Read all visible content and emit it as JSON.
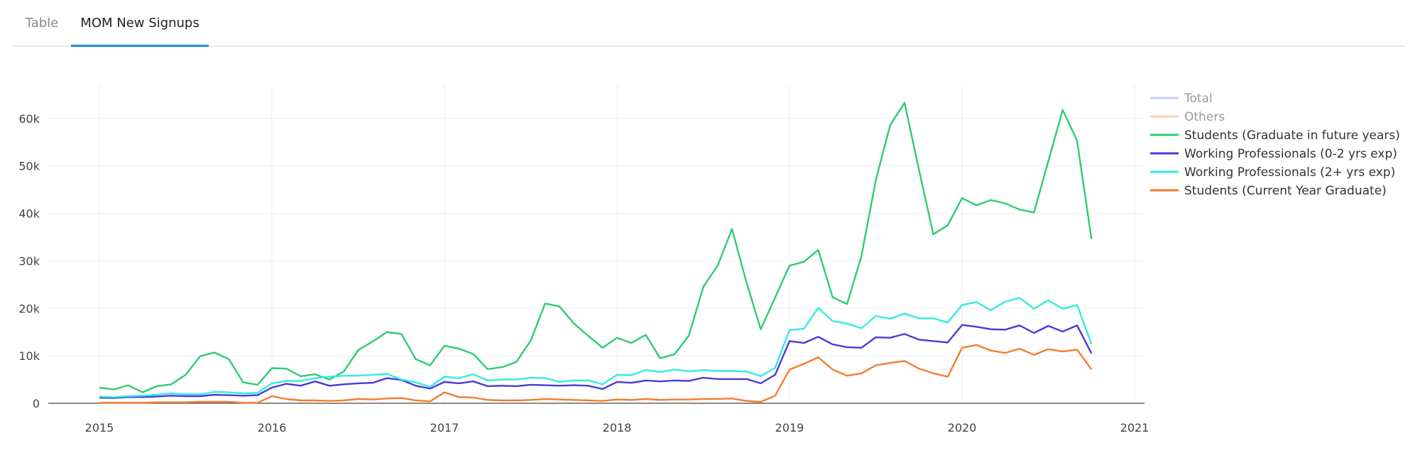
{
  "tabs": [
    {
      "label": "Table",
      "active": false
    },
    {
      "label": "MOM New Signups",
      "active": true
    }
  ],
  "chart_data": {
    "type": "line",
    "x_start": "2015-01",
    "x_end": "2020-10",
    "x_ticks": [
      "2015",
      "2016",
      "2017",
      "2018",
      "2019",
      "2020",
      "2021"
    ],
    "y_ticks": [
      "0",
      "10k",
      "20k",
      "30k",
      "40k",
      "50k",
      "60k"
    ],
    "ylim": [
      0,
      67000
    ],
    "grid": true,
    "legend_position": "right",
    "series": [
      {
        "name": "Total",
        "color": "#9aa6f5",
        "visible": false,
        "values": []
      },
      {
        "name": "Others",
        "color": "#f7ae7a",
        "visible": false,
        "values": []
      },
      {
        "name": "Students (Graduate in future years)",
        "color": "#2ecc71",
        "visible": true,
        "values": [
          3300,
          2900,
          3800,
          2300,
          3600,
          4000,
          6000,
          9900,
          10700,
          9300,
          4400,
          3900,
          7400,
          7300,
          5700,
          6100,
          5000,
          6700,
          11200,
          13000,
          15000,
          14600,
          9300,
          8000,
          12100,
          11500,
          10400,
          7200,
          7600,
          8700,
          13200,
          21000,
          20400,
          16800,
          14200,
          11700,
          13800,
          12700,
          14400,
          9500,
          10300,
          14300,
          24500,
          29000,
          36700,
          25500,
          15600,
          22300,
          29000,
          29800,
          32300,
          22300,
          20900,
          31000,
          47000,
          58600,
          63300,
          49200,
          35600,
          37500,
          43200,
          41700,
          42800,
          42100,
          40800,
          40200,
          51000,
          61800,
          55300,
          34600
        ]
      },
      {
        "name": "Working Professionals (0-2 yrs exp)",
        "color": "#4b3ad6",
        "visible": true,
        "values": [
          1200,
          1100,
          1300,
          1300,
          1400,
          1600,
          1500,
          1500,
          1800,
          1700,
          1600,
          1700,
          3300,
          4100,
          3700,
          4600,
          3700,
          4000,
          4200,
          4300,
          5300,
          4900,
          3700,
          3100,
          4500,
          4200,
          4600,
          3600,
          3700,
          3600,
          3900,
          3800,
          3700,
          3800,
          3700,
          3000,
          4500,
          4300,
          4800,
          4600,
          4800,
          4700,
          5400,
          5100,
          5100,
          5100,
          4200,
          6000,
          13100,
          12700,
          14000,
          12400,
          11800,
          11700,
          13900,
          13800,
          14600,
          13400,
          13100,
          12800,
          16500,
          16100,
          15600,
          15500,
          16400,
          14800,
          16300,
          15100,
          16400,
          10500
        ]
      },
      {
        "name": "Working Professionals (2+ yrs exp)",
        "color": "#33ece0",
        "visible": true,
        "values": [
          1400,
          1300,
          1500,
          1600,
          1800,
          2100,
          1900,
          1900,
          2400,
          2300,
          2100,
          2200,
          4200,
          4700,
          4700,
          5300,
          5600,
          5800,
          5800,
          6000,
          6200,
          5000,
          4400,
          3500,
          5600,
          5300,
          6100,
          4800,
          5000,
          5000,
          5400,
          5300,
          4500,
          4800,
          4800,
          4000,
          6000,
          5900,
          7000,
          6600,
          7100,
          6700,
          7000,
          6800,
          6800,
          6700,
          5700,
          7500,
          15400,
          15700,
          20100,
          17300,
          16800,
          15800,
          18400,
          17800,
          18900,
          17900,
          17900,
          17000,
          20700,
          21300,
          19600,
          21400,
          22200,
          19900,
          21700,
          19900,
          20700,
          12500
        ]
      },
      {
        "name": "Students (Current Year Graduate)",
        "color": "#f57c2e",
        "visible": true,
        "values": [
          100,
          100,
          100,
          100,
          200,
          200,
          200,
          300,
          300,
          300,
          100,
          100,
          1500,
          900,
          600,
          600,
          500,
          600,
          900,
          800,
          1000,
          1100,
          600,
          400,
          2300,
          1300,
          1200,
          700,
          600,
          600,
          700,
          900,
          800,
          700,
          600,
          500,
          800,
          700,
          900,
          700,
          800,
          800,
          900,
          900,
          1000,
          500,
          300,
          1600,
          7100,
          8300,
          9700,
          7100,
          5800,
          6300,
          8000,
          8500,
          8900,
          7300,
          6300,
          5600,
          11700,
          12300,
          11100,
          10600,
          11500,
          10200,
          11400,
          10900,
          11300,
          7100
        ]
      }
    ]
  }
}
